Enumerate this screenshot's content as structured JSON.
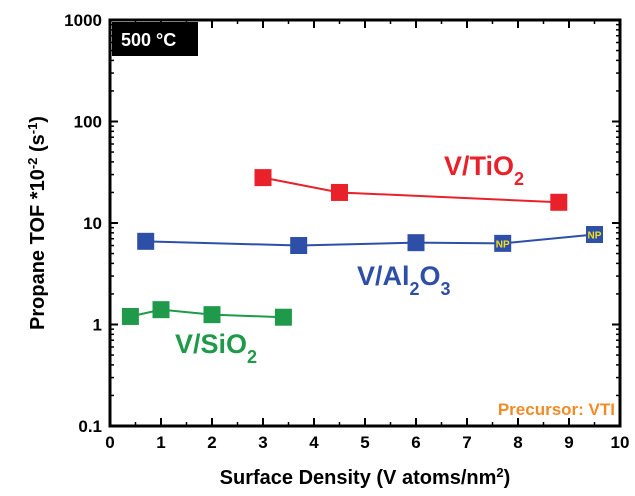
{
  "chart_data": {
    "type": "scatter",
    "title": "",
    "xlabel": {
      "main": "Surface Density (V atoms/nm",
      "sup": "2",
      "end": ")"
    },
    "ylabel": {
      "main": "Propane TOF *10",
      "sup": "-2",
      "mid": " (s",
      "sup2": "-1",
      "end": ")"
    },
    "xlim": [
      0,
      10
    ],
    "ylim": [
      0.1,
      1000
    ],
    "yscale": "log",
    "x_ticks": [
      "0",
      "1",
      "2",
      "3",
      "4",
      "5",
      "6",
      "7",
      "8",
      "9",
      "10"
    ],
    "y_ticks": [
      "0.1",
      "1",
      "10",
      "100",
      "1000"
    ],
    "temperature_badge": "500 °C",
    "annotation": "Precursor: VTI",
    "annotation_color": "#f08c28",
    "series": [
      {
        "name": "V/TiO",
        "sub": "2",
        "label_parts": [
          [
            "V/TiO",
            ""
          ],
          [
            "2",
            ""
          ]
        ],
        "color": "#e8212a",
        "x": [
          3.0,
          4.5,
          8.8
        ],
        "y": [
          28,
          20,
          16
        ]
      },
      {
        "name": "V/Al",
        "label_parts": [
          [
            "V/Al",
            ""
          ],
          [
            "2",
            "sub"
          ],
          [
            "O",
            ""
          ],
          [
            "3",
            "sub"
          ]
        ],
        "color": "#2e4fa8",
        "x": [
          0.7,
          3.7,
          6.0,
          7.7,
          9.5
        ],
        "y": [
          6.6,
          6.0,
          6.4,
          6.3,
          7.7
        ],
        "np_points": [
          3,
          4
        ],
        "np_text": "NP"
      },
      {
        "name": "V/SiO",
        "label_parts": [
          [
            "V/SiO",
            ""
          ],
          [
            "2",
            "sub"
          ]
        ],
        "color": "#1e9a4a",
        "x": [
          0.4,
          1.0,
          2.0,
          3.4
        ],
        "y": [
          1.2,
          1.4,
          1.25,
          1.18
        ]
      }
    ]
  }
}
